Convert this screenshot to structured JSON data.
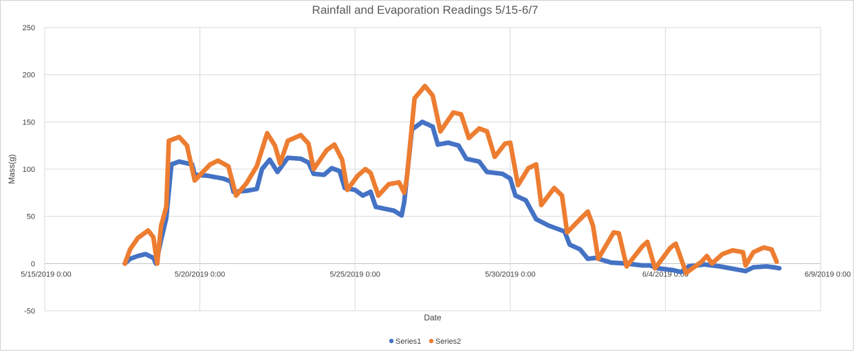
{
  "chart_data": {
    "type": "scatter",
    "title": "Rainfall and Evaporation Readings 5/15-6/7",
    "xlabel": "Date",
    "ylabel": "Mass(g)",
    "x_type": "date",
    "xlim": [
      "5/15/2019 0:00",
      "6/9/2019 0:00"
    ],
    "ylim": [
      -50,
      250
    ],
    "x_ticks": [
      "5/15/2019 0:00",
      "5/20/2019 0:00",
      "5/25/2019 0:00",
      "5/30/2019 0:00",
      "6/4/2019 0:00",
      "6/9/2019 0:00"
    ],
    "y_ticks": [
      -50,
      0,
      50,
      100,
      150,
      200,
      250
    ],
    "grid": true,
    "legend": "bottom",
    "series": [
      {
        "name": "Series1",
        "color": "#4472C4",
        "points": [
          [
            "5/17/2019 14:00",
            0
          ],
          [
            "5/17/2019 18:00",
            5
          ],
          [
            "5/18/2019 0:00",
            8
          ],
          [
            "5/18/2019 6:00",
            10
          ],
          [
            "5/18/2019 12:00",
            6
          ],
          [
            "5/18/2019 14:00",
            0
          ],
          [
            "5/18/2019 18:00",
            25
          ],
          [
            "5/18/2019 22:00",
            48
          ],
          [
            "5/19/2019 2:00",
            105
          ],
          [
            "5/19/2019 8:00",
            108
          ],
          [
            "5/19/2019 18:00",
            105
          ],
          [
            "5/19/2019 20:00",
            94
          ],
          [
            "5/20/2019 6:00",
            93
          ],
          [
            "5/20/2019 18:00",
            90
          ],
          [
            "5/21/2019 0:00",
            87
          ],
          [
            "5/21/2019 2:00",
            76
          ],
          [
            "5/21/2019 12:00",
            77
          ],
          [
            "5/21/2019 20:00",
            79
          ],
          [
            "5/22/2019 0:00",
            100
          ],
          [
            "5/22/2019 6:00",
            110
          ],
          [
            "5/22/2019 12:00",
            97
          ],
          [
            "5/22/2019 20:00",
            112
          ],
          [
            "5/23/2019 6:00",
            111
          ],
          [
            "5/23/2019 12:00",
            107
          ],
          [
            "5/23/2019 16:00",
            95
          ],
          [
            "5/24/2019 0:00",
            94
          ],
          [
            "5/24/2019 6:00",
            101
          ],
          [
            "5/24/2019 12:00",
            98
          ],
          [
            "5/24/2019 16:00",
            80
          ],
          [
            "5/25/2019 0:00",
            78
          ],
          [
            "5/25/2019 6:00",
            72
          ],
          [
            "5/25/2019 12:00",
            76
          ],
          [
            "5/25/2019 16:00",
            60
          ],
          [
            "5/26/2019 6:00",
            56
          ],
          [
            "5/26/2019 12:00",
            51
          ],
          [
            "5/26/2019 14:00",
            65
          ],
          [
            "5/26/2019 20:00",
            142
          ],
          [
            "5/27/2019 4:00",
            150
          ],
          [
            "5/27/2019 12:00",
            145
          ],
          [
            "5/27/2019 16:00",
            126
          ],
          [
            "5/28/2019 0:00",
            128
          ],
          [
            "5/28/2019 8:00",
            125
          ],
          [
            "5/28/2019 14:00",
            111
          ],
          [
            "5/29/2019 0:00",
            108
          ],
          [
            "5/29/2019 6:00",
            97
          ],
          [
            "5/29/2019 18:00",
            95
          ],
          [
            "5/30/2019 0:00",
            90
          ],
          [
            "5/30/2019 4:00",
            72
          ],
          [
            "5/30/2019 12:00",
            67
          ],
          [
            "5/30/2019 20:00",
            47
          ],
          [
            "5/31/2019 6:00",
            40
          ],
          [
            "5/31/2019 18:00",
            34
          ],
          [
            "5/31/2019 22:00",
            20
          ],
          [
            "6/1/2019 6:00",
            15
          ],
          [
            "6/1/2019 12:00",
            5
          ],
          [
            "6/1/2019 18:00",
            6
          ],
          [
            "6/2/2019 6:00",
            1
          ],
          [
            "6/2/2019 18:00",
            0
          ],
          [
            "6/3/2019 6:00",
            -2
          ],
          [
            "6/3/2019 12:00",
            -2
          ],
          [
            "6/3/2019 18:00",
            -5
          ],
          [
            "6/4/2019 6:00",
            -7
          ],
          [
            "6/4/2019 12:00",
            -9
          ],
          [
            "6/4/2019 18:00",
            -3
          ],
          [
            "6/5/2019 6:00",
            -1
          ],
          [
            "6/5/2019 18:00",
            -3
          ],
          [
            "6/6/2019 6:00",
            -6
          ],
          [
            "6/6/2019 14:00",
            -8
          ],
          [
            "6/6/2019 20:00",
            -4
          ],
          [
            "6/7/2019 6:00",
            -3
          ],
          [
            "6/7/2019 12:00",
            -4
          ],
          [
            "6/7/2019 16:00",
            -5
          ]
        ]
      },
      {
        "name": "Series2",
        "color": "#ED7D31",
        "points": [
          [
            "5/17/2019 14:00",
            0
          ],
          [
            "5/17/2019 18:00",
            15
          ],
          [
            "5/18/2019 0:00",
            27
          ],
          [
            "5/18/2019 8:00",
            35
          ],
          [
            "5/18/2019 12:00",
            28
          ],
          [
            "5/18/2019 15:00",
            0
          ],
          [
            "5/18/2019 18:00",
            40
          ],
          [
            "5/18/2019 22:00",
            60
          ],
          [
            "5/19/2019 0:00",
            130
          ],
          [
            "5/19/2019 8:00",
            134
          ],
          [
            "5/19/2019 14:00",
            125
          ],
          [
            "5/19/2019 20:00",
            88
          ],
          [
            "5/20/2019 8:00",
            105
          ],
          [
            "5/20/2019 14:00",
            109
          ],
          [
            "5/20/2019 22:00",
            103
          ],
          [
            "5/21/2019 4:00",
            72
          ],
          [
            "5/21/2019 12:00",
            85
          ],
          [
            "5/21/2019 20:00",
            103
          ],
          [
            "5/22/2019 4:00",
            138
          ],
          [
            "5/22/2019 10:00",
            125
          ],
          [
            "5/22/2019 14:00",
            106
          ],
          [
            "5/22/2019 20:00",
            130
          ],
          [
            "5/23/2019 6:00",
            136
          ],
          [
            "5/23/2019 12:00",
            127
          ],
          [
            "5/23/2019 16:00",
            100
          ],
          [
            "5/24/2019 2:00",
            120
          ],
          [
            "5/24/2019 8:00",
            126
          ],
          [
            "5/24/2019 14:00",
            110
          ],
          [
            "5/24/2019 18:00",
            78
          ],
          [
            "5/25/2019 2:00",
            93
          ],
          [
            "5/25/2019 8:00",
            100
          ],
          [
            "5/25/2019 12:00",
            96
          ],
          [
            "5/25/2019 18:00",
            72
          ],
          [
            "5/26/2019 2:00",
            84
          ],
          [
            "5/26/2019 10:00",
            86
          ],
          [
            "5/26/2019 14:00",
            75
          ],
          [
            "5/26/2019 16:00",
            90
          ],
          [
            "5/26/2019 22:00",
            175
          ],
          [
            "5/27/2019 6:00",
            188
          ],
          [
            "5/27/2019 12:00",
            178
          ],
          [
            "5/27/2019 18:00",
            140
          ],
          [
            "5/28/2019 4:00",
            160
          ],
          [
            "5/28/2019 10:00",
            158
          ],
          [
            "5/28/2019 16:00",
            133
          ],
          [
            "5/29/2019 0:00",
            143
          ],
          [
            "5/29/2019 6:00",
            140
          ],
          [
            "5/29/2019 12:00",
            113
          ],
          [
            "5/29/2019 20:00",
            127
          ],
          [
            "5/30/2019 0:00",
            128
          ],
          [
            "5/30/2019 6:00",
            83
          ],
          [
            "5/30/2019 14:00",
            101
          ],
          [
            "5/30/2019 20:00",
            105
          ],
          [
            "5/31/2019 0:00",
            62
          ],
          [
            "5/31/2019 10:00",
            80
          ],
          [
            "5/31/2019 16:00",
            72
          ],
          [
            "5/31/2019 20:00",
            33
          ],
          [
            "6/1/2019 6:00",
            47
          ],
          [
            "6/1/2019 12:00",
            55
          ],
          [
            "6/1/2019 16:00",
            40
          ],
          [
            "6/1/2019 20:00",
            5
          ],
          [
            "6/2/2019 8:00",
            33
          ],
          [
            "6/2/2019 12:00",
            32
          ],
          [
            "6/2/2019 18:00",
            -3
          ],
          [
            "6/3/2019 6:00",
            18
          ],
          [
            "6/3/2019 10:00",
            23
          ],
          [
            "6/3/2019 16:00",
            -5
          ],
          [
            "6/4/2019 4:00",
            17
          ],
          [
            "6/4/2019 8:00",
            21
          ],
          [
            "6/4/2019 16:00",
            -10
          ],
          [
            "6/5/2019 4:00",
            2
          ],
          [
            "6/5/2019 8:00",
            8
          ],
          [
            "6/5/2019 12:00",
            0
          ],
          [
            "6/5/2019 20:00",
            10
          ],
          [
            "6/6/2019 4:00",
            14
          ],
          [
            "6/6/2019 12:00",
            12
          ],
          [
            "6/6/2019 14:00",
            -2
          ],
          [
            "6/6/2019 20:00",
            12
          ],
          [
            "6/7/2019 4:00",
            17
          ],
          [
            "6/7/2019 10:00",
            15
          ],
          [
            "6/7/2019 14:00",
            2
          ]
        ]
      }
    ]
  }
}
